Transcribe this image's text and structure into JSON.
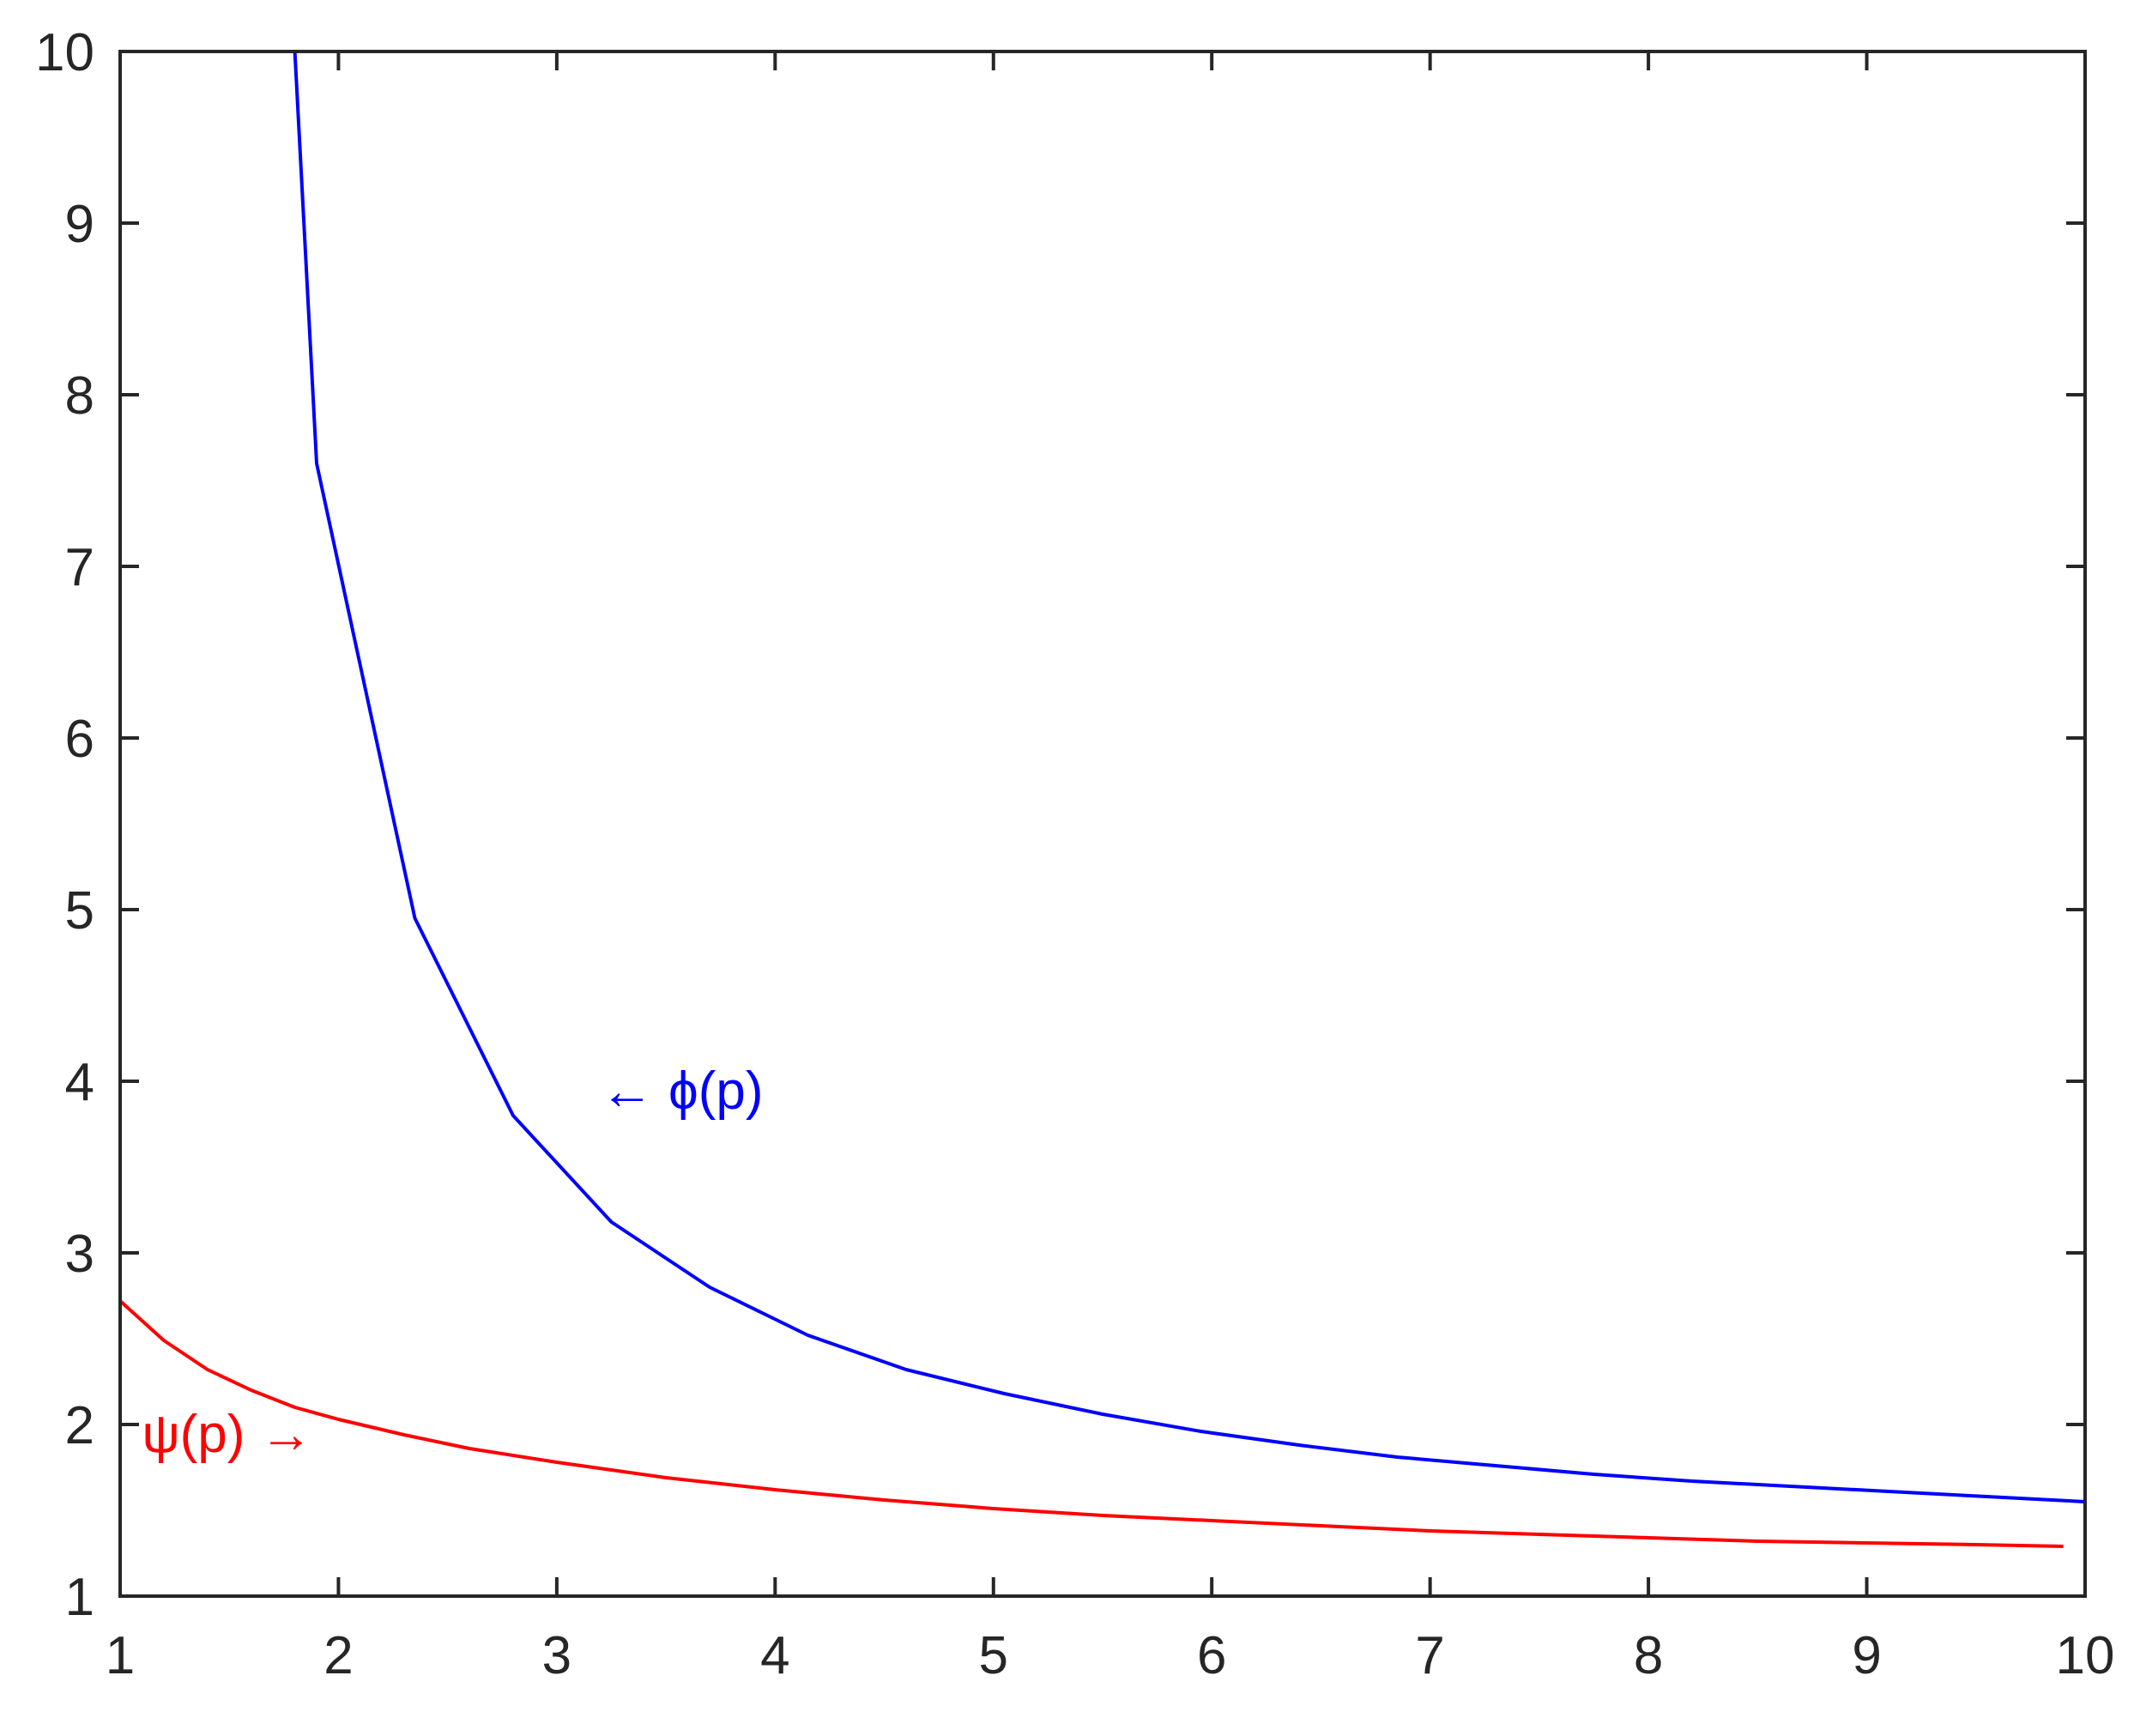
{
  "chart_data": {
    "type": "line",
    "title": "",
    "xlabel": "",
    "ylabel": "",
    "xlim": [
      1,
      10
    ],
    "ylim": [
      1,
      10
    ],
    "xticks": [
      "1",
      "2",
      "3",
      "4",
      "5",
      "6",
      "7",
      "8",
      "9",
      "10"
    ],
    "yticks": [
      "1",
      "2",
      "3",
      "4",
      "5",
      "6",
      "7",
      "8",
      "9",
      "10"
    ],
    "grid": false,
    "box": true,
    "series": [
      {
        "color": "#0000ff",
        "x": [
          1.8,
          1.9,
          2.35,
          2.8,
          3.25,
          3.7,
          4.15,
          4.6,
          5.05,
          5.5,
          5.95,
          6.4,
          6.85,
          7.3,
          7.75,
          8.2,
          8.65,
          9.1,
          9.55,
          10.0
        ],
        "y": [
          10.0,
          7.6,
          4.95,
          3.8,
          3.18,
          2.8,
          2.52,
          2.32,
          2.18,
          2.06,
          1.96,
          1.88,
          1.81,
          1.76,
          1.71,
          1.67,
          1.64,
          1.61,
          1.58,
          1.55
        ]
      },
      {
        "color": "#ff0000",
        "x": [
          1.0,
          1.2,
          1.4,
          1.6,
          1.8,
          2.0,
          2.3,
          2.6,
          3.0,
          3.5,
          4.0,
          4.5,
          5.0,
          5.5,
          6.0,
          6.5,
          7.0,
          7.5,
          8.0,
          8.5,
          9.0,
          9.5,
          9.9
        ],
        "y": [
          2.72,
          2.49,
          2.32,
          2.2,
          2.1,
          2.03,
          1.94,
          1.86,
          1.78,
          1.69,
          1.62,
          1.56,
          1.51,
          1.47,
          1.44,
          1.41,
          1.38,
          1.36,
          1.34,
          1.32,
          1.31,
          1.3,
          1.29
        ]
      }
    ],
    "annotations": [
      {
        "text": "← ϕ(p)",
        "x": 3.2,
        "y": 3.95,
        "color": "#0000ff",
        "anchor": "start"
      },
      {
        "text": "ψ(p) →",
        "x": 1.1,
        "y": 1.95,
        "color": "#ff0000",
        "anchor": "start"
      }
    ]
  }
}
